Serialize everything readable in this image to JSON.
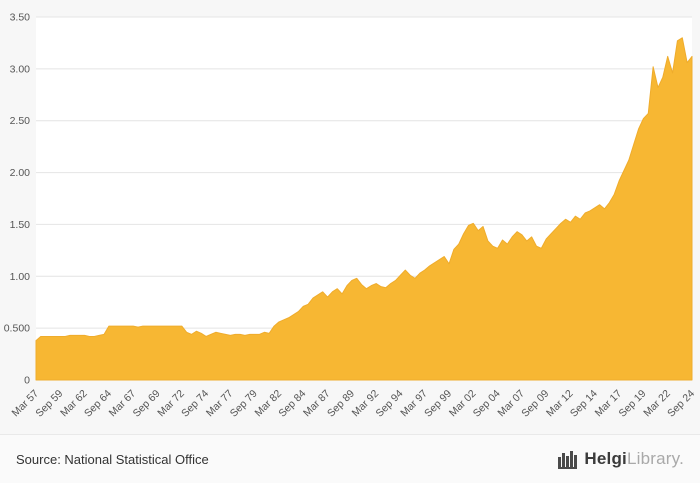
{
  "chart_data": {
    "type": "area",
    "title": "",
    "xlabel": "",
    "ylabel": "",
    "ylim": [
      0,
      3.5
    ],
    "grid": true,
    "legend": "none",
    "fill_color": "#F7B733",
    "stroke_color": "#EFAC2C",
    "grid_color": "#e4e4e4",
    "axis_text_color": "#555555",
    "plot_bg_color": "#ffffff",
    "y_ticks": [
      {
        "v": 0,
        "label": "0"
      },
      {
        "v": 0.5,
        "label": "0.500"
      },
      {
        "v": 1.0,
        "label": "1.00"
      },
      {
        "v": 1.5,
        "label": "1.50"
      },
      {
        "v": 2.0,
        "label": "2.00"
      },
      {
        "v": 2.5,
        "label": "2.50"
      },
      {
        "v": 3.0,
        "label": "3.00"
      },
      {
        "v": 3.5,
        "label": "3.50"
      }
    ],
    "x_label_every": 5,
    "x_labels": [
      "Mar 57",
      "Sep 59",
      "Mar 62",
      "Sep 64",
      "Mar 67",
      "Sep 69",
      "Mar 72",
      "Sep 74",
      "Mar 77",
      "Sep 79",
      "Mar 82",
      "Sep 84",
      "Mar 87",
      "Sep 89",
      "Mar 92",
      "Sep 94",
      "Mar 97",
      "Sep 99",
      "Mar 02",
      "Sep 04",
      "Mar 07",
      "Sep 09",
      "Mar 12",
      "Sep 14",
      "Mar 17",
      "Sep 19",
      "Mar 22",
      "Sep 24"
    ],
    "x_frequency": "semi-annual (Mar and Sep), Mar 1957 to Sep 2024",
    "values": [
      0.38,
      0.42,
      0.42,
      0.42,
      0.42,
      0.42,
      0.42,
      0.43,
      0.43,
      0.43,
      0.43,
      0.42,
      0.42,
      0.43,
      0.44,
      0.52,
      0.52,
      0.52,
      0.52,
      0.52,
      0.52,
      0.51,
      0.52,
      0.52,
      0.52,
      0.52,
      0.52,
      0.52,
      0.52,
      0.52,
      0.52,
      0.46,
      0.44,
      0.47,
      0.45,
      0.42,
      0.44,
      0.46,
      0.45,
      0.44,
      0.43,
      0.44,
      0.44,
      0.43,
      0.44,
      0.44,
      0.44,
      0.46,
      0.45,
      0.52,
      0.56,
      0.58,
      0.6,
      0.63,
      0.66,
      0.71,
      0.73,
      0.79,
      0.82,
      0.85,
      0.8,
      0.85,
      0.88,
      0.83,
      0.91,
      0.96,
      0.98,
      0.92,
      0.88,
      0.91,
      0.93,
      0.9,
      0.89,
      0.93,
      0.96,
      1.01,
      1.06,
      1.01,
      0.98,
      1.03,
      1.06,
      1.1,
      1.13,
      1.16,
      1.19,
      1.12,
      1.26,
      1.31,
      1.41,
      1.49,
      1.51,
      1.44,
      1.48,
      1.34,
      1.29,
      1.27,
      1.35,
      1.31,
      1.38,
      1.43,
      1.4,
      1.34,
      1.38,
      1.29,
      1.27,
      1.36,
      1.41,
      1.46,
      1.51,
      1.55,
      1.52,
      1.58,
      1.55,
      1.61,
      1.63,
      1.66,
      1.69,
      1.65,
      1.71,
      1.79,
      1.92,
      2.02,
      2.12,
      2.27,
      2.42,
      2.52,
      2.57,
      3.02,
      2.82,
      2.92,
      3.12,
      2.96,
      3.27,
      3.3,
      3.06,
      3.12
    ]
  },
  "footer": {
    "source": "Source: National Statistical Office",
    "logo_bold": "Helgi",
    "logo_light": "Library."
  },
  "icons": {
    "logo": "bar-chart-icon"
  }
}
